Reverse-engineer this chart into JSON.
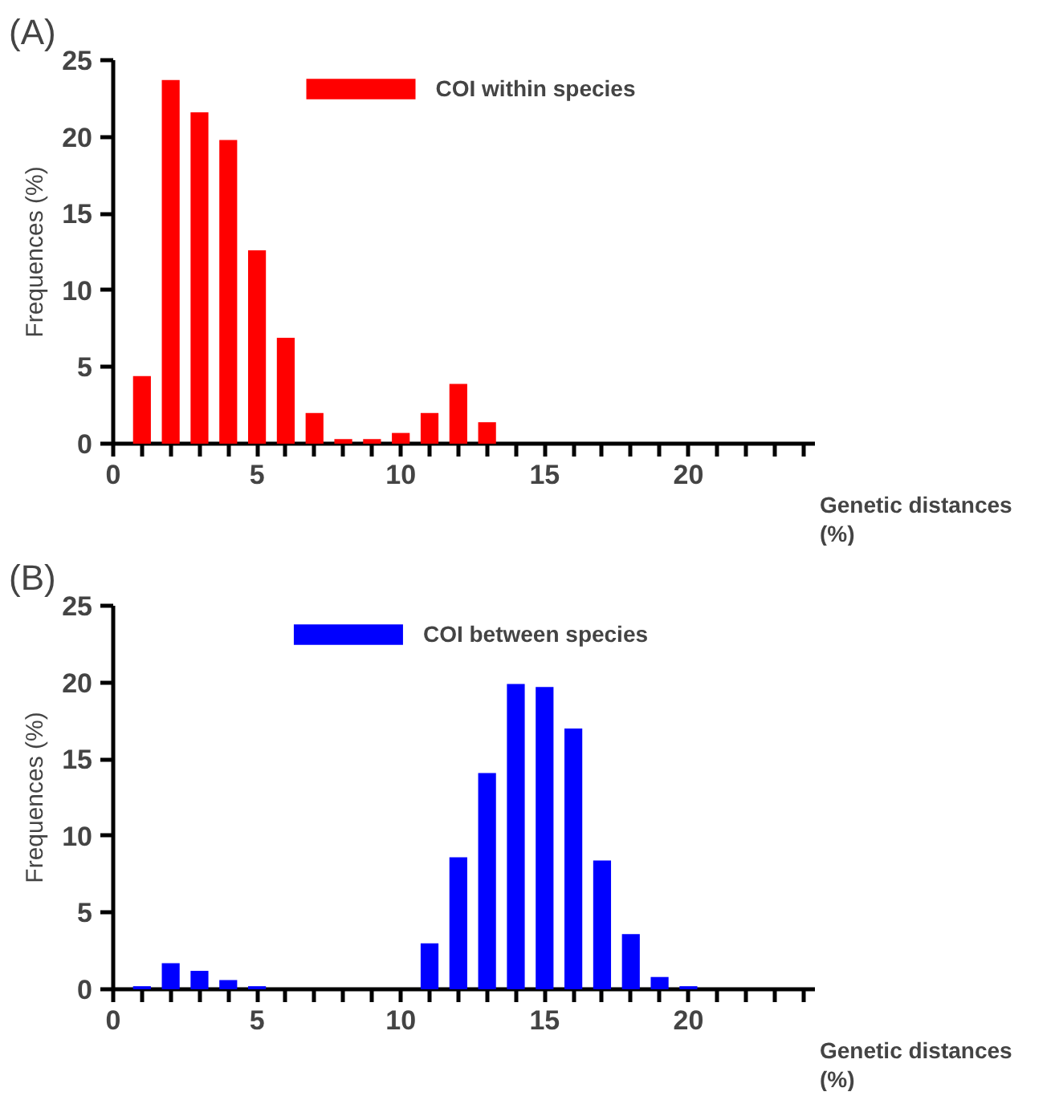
{
  "chart_data": [
    {
      "type": "bar",
      "title": "(A)",
      "xlabel": "Genetic distances\n(%)",
      "ylabel": "Frequences (%)",
      "x": [
        1,
        2,
        3,
        4,
        5,
        6,
        7,
        8,
        9,
        10,
        11,
        12,
        13
      ],
      "series": [
        {
          "name": "COI within species",
          "color": "#ff0000",
          "values": [
            4.4,
            23.7,
            21.6,
            19.8,
            12.6,
            6.9,
            2.0,
            0.3,
            0.3,
            0.7,
            2.0,
            3.9,
            1.4
          ]
        }
      ],
      "xlim": [
        0,
        24.4
      ],
      "ylim": [
        0,
        25
      ],
      "yticks": [
        0,
        5,
        10,
        15,
        20,
        25
      ],
      "xticks": [
        0,
        {
          "value": 1,
          "label": null
        },
        {
          "value": 2,
          "label": null
        },
        {
          "value": 3,
          "label": null
        },
        {
          "value": 4,
          "label": null
        },
        5,
        {
          "value": 6,
          "label": null
        },
        {
          "value": 7,
          "label": null
        },
        {
          "value": 8,
          "label": null
        },
        {
          "value": 9,
          "label": null
        },
        10,
        {
          "value": 11,
          "label": null
        },
        {
          "value": 12,
          "label": null
        },
        {
          "value": 13,
          "label": null
        },
        {
          "value": 14,
          "label": null
        },
        15,
        {
          "value": 16,
          "label": null
        },
        {
          "value": 17,
          "label": null
        },
        {
          "value": 18,
          "label": null
        },
        {
          "value": 19,
          "label": null
        },
        20,
        {
          "value": 21,
          "label": null
        },
        {
          "value": 22,
          "label": null
        },
        {
          "value": 23,
          "label": null
        },
        {
          "value": 24,
          "label": null
        }
      ],
      "grid": false,
      "legend": "top"
    },
    {
      "type": "bar",
      "title": "(B)",
      "xlabel": "Genetic distances\n(%)",
      "ylabel": "Frequences (%)",
      "x": [
        1,
        2,
        3,
        4,
        5,
        6,
        7,
        8,
        9,
        10,
        11,
        12,
        13,
        14,
        15,
        16,
        17,
        18,
        19,
        20
      ],
      "series": [
        {
          "name": "COI between species",
          "color": "#0000ff",
          "values": [
            0.2,
            1.7,
            1.2,
            0.6,
            0.2,
            0,
            0,
            0,
            0,
            0,
            3.0,
            8.6,
            14.1,
            19.9,
            19.7,
            17.0,
            8.4,
            3.6,
            0.8,
            0.2
          ]
        }
      ],
      "xlim": [
        0,
        24.4
      ],
      "ylim": [
        0,
        25
      ],
      "yticks": [
        0,
        5,
        10,
        15,
        20,
        25
      ],
      "xticks": [
        0,
        {
          "value": 1,
          "label": null
        },
        {
          "value": 2,
          "label": null
        },
        {
          "value": 3,
          "label": null
        },
        {
          "value": 4,
          "label": null
        },
        5,
        {
          "value": 6,
          "label": null
        },
        {
          "value": 7,
          "label": null
        },
        {
          "value": 8,
          "label": null
        },
        {
          "value": 9,
          "label": null
        },
        10,
        {
          "value": 11,
          "label": null
        },
        {
          "value": 12,
          "label": null
        },
        {
          "value": 13,
          "label": null
        },
        {
          "value": 14,
          "label": null
        },
        15,
        {
          "value": 16,
          "label": null
        },
        {
          "value": 17,
          "label": null
        },
        {
          "value": 18,
          "label": null
        },
        {
          "value": 19,
          "label": null
        },
        20,
        {
          "value": 21,
          "label": null
        },
        {
          "value": 22,
          "label": null
        },
        {
          "value": 23,
          "label": null
        },
        {
          "value": 24,
          "label": null
        }
      ],
      "grid": false,
      "legend": "top"
    }
  ]
}
